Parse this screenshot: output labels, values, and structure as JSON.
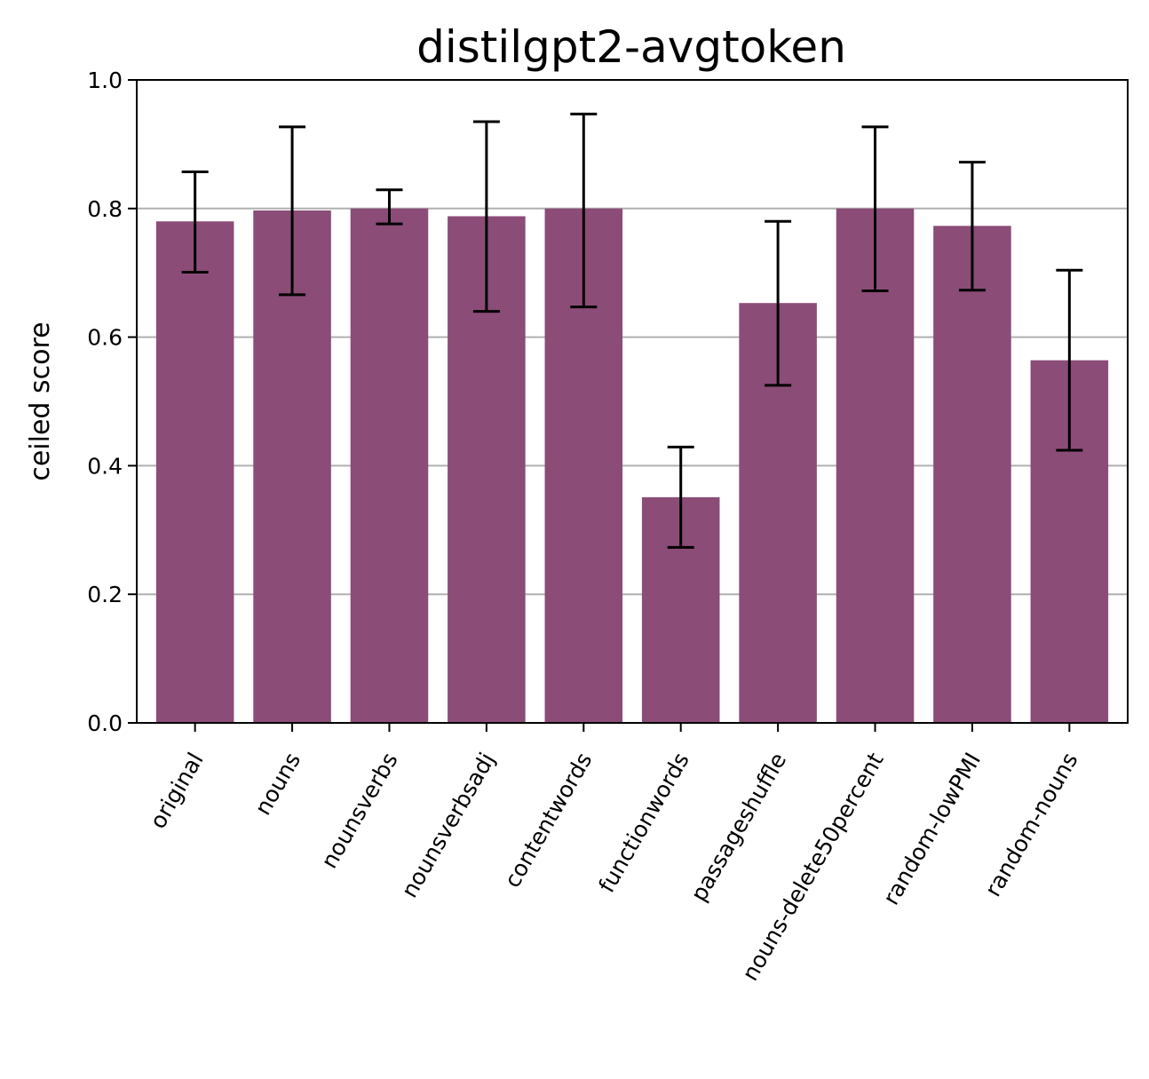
{
  "chart_data": {
    "type": "bar",
    "title": "distilgpt2-avgtoken",
    "xlabel": "",
    "ylabel": "ceiled score",
    "ylim": [
      0,
      1.0
    ],
    "yticks": [
      "0.0",
      "0.2",
      "0.4",
      "0.6",
      "0.8",
      "1.0"
    ],
    "grid": "y",
    "bar_color": "#8b4c77",
    "categories": [
      "original",
      "nouns",
      "nounsverbs",
      "nounsverbsadj",
      "contentwords",
      "functionwords",
      "passageshuffle",
      "nouns-delete50percent",
      "random-lowPMI",
      "random-nouns"
    ],
    "values": [
      0.78,
      0.797,
      0.8,
      0.788,
      0.8,
      0.351,
      0.653,
      0.8,
      0.773,
      0.564
    ],
    "error_low": [
      0.701,
      0.666,
      0.776,
      0.64,
      0.647,
      0.273,
      0.525,
      0.672,
      0.673,
      0.424
    ],
    "error_high": [
      0.857,
      0.927,
      0.829,
      0.935,
      0.947,
      0.429,
      0.78,
      0.927,
      0.872,
      0.704
    ]
  }
}
